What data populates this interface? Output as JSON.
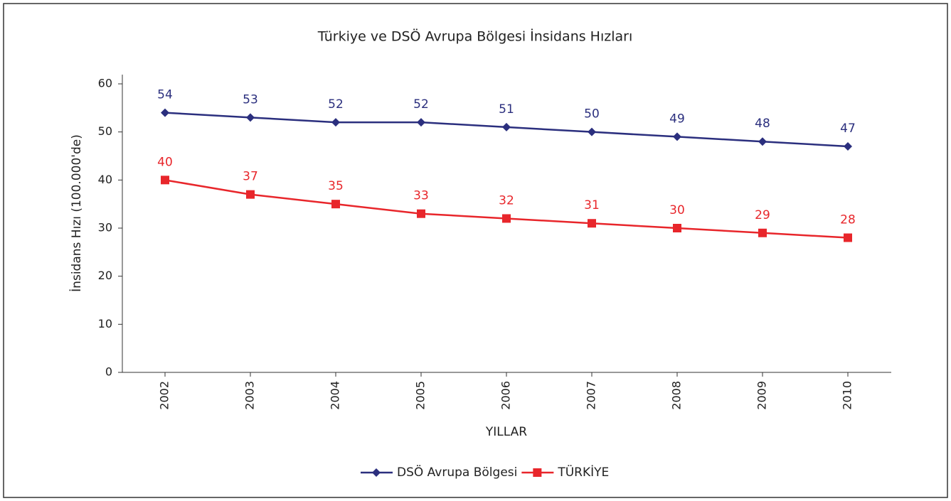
{
  "chart_data": {
    "type": "line",
    "title": "Türkiye ve DSÖ Avrupa Bölgesi İnsidans Hızları",
    "x_label": "YILLAR",
    "y_label": "İnsidans Hızı (100.000'de)",
    "categories": [
      "2002",
      "2003",
      "2004",
      "2005",
      "2006",
      "2007",
      "2008",
      "2009",
      "2010"
    ],
    "series": [
      {
        "name": "DSÖ Avrupa Bölgesi",
        "color": "#2b2f7e",
        "marker": "diamond",
        "values": [
          54,
          53,
          52,
          52,
          51,
          50,
          49,
          48,
          47
        ]
      },
      {
        "name": "TÜRKİYE",
        "color": "#e8262b",
        "marker": "square",
        "values": [
          40,
          37,
          35,
          33,
          32,
          31,
          30,
          29,
          28
        ]
      }
    ],
    "ylim": [
      0,
      60
    ],
    "yticks": [
      0,
      10,
      20,
      30,
      40,
      50,
      60
    ],
    "grid": false,
    "legend": "bottom"
  }
}
